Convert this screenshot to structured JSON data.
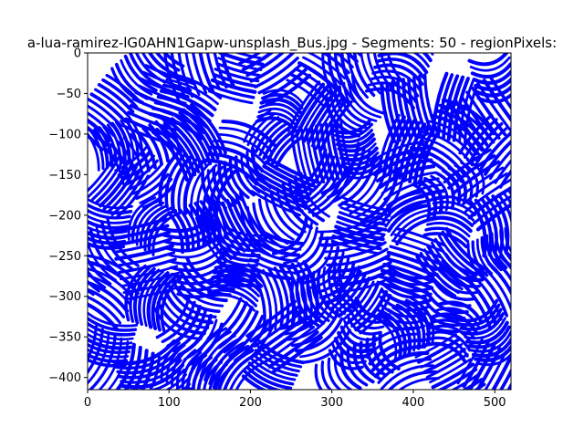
{
  "chart_data": {
    "type": "line",
    "title": "a-lua-ramirez-lG0AHN1Gapw-unsplash_Bus.jpg - Segments: 50 - regionPixels:",
    "xlabel": "",
    "ylabel": "",
    "xlim": [
      0,
      520
    ],
    "ylim": [
      -415,
      0
    ],
    "x_ticks": [
      0,
      100,
      200,
      300,
      400,
      500
    ],
    "y_ticks": [
      0,
      -50,
      -100,
      -150,
      -200,
      -250,
      -300,
      -350,
      -400
    ],
    "grid": false,
    "legend": "none",
    "series_color": "#0000ff",
    "background_color": "#ffffff",
    "segment_count": 50,
    "description": "Dense blue streamline strokes covering most of the plot area, arranged in patches of curved parallel lines."
  }
}
